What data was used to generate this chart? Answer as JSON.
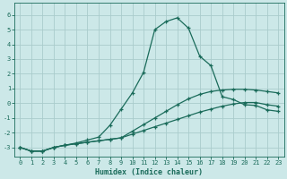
{
  "xlabel": "Humidex (Indice chaleur)",
  "ylabel": "",
  "bg_color": "#cce8e8",
  "grid_color": "#aacccc",
  "line_color": "#1a6b5a",
  "xlim": [
    -0.5,
    23.5
  ],
  "ylim": [
    -3.6,
    6.8
  ],
  "xticks": [
    0,
    1,
    2,
    3,
    4,
    5,
    6,
    7,
    8,
    9,
    10,
    11,
    12,
    13,
    14,
    15,
    16,
    17,
    18,
    19,
    20,
    21,
    22,
    23
  ],
  "yticks": [
    -3,
    -2,
    -1,
    0,
    1,
    2,
    3,
    4,
    5,
    6
  ],
  "line1_x": [
    0,
    1,
    2,
    3,
    4,
    5,
    6,
    7,
    8,
    9,
    10,
    11,
    12,
    13,
    14,
    15,
    16,
    17,
    18,
    19,
    20,
    21,
    22,
    23
  ],
  "line1_y": [
    -3.0,
    -3.25,
    -3.25,
    -3.0,
    -2.85,
    -2.75,
    -2.65,
    -2.55,
    -2.45,
    -2.35,
    -2.1,
    -1.85,
    -1.6,
    -1.35,
    -1.1,
    -0.85,
    -0.6,
    -0.4,
    -0.2,
    -0.05,
    0.05,
    0.05,
    -0.1,
    -0.2
  ],
  "line2_x": [
    0,
    1,
    2,
    3,
    4,
    5,
    6,
    7,
    8,
    9,
    10,
    11,
    12,
    13,
    14,
    15,
    16,
    17,
    18,
    19,
    20,
    21,
    22,
    23
  ],
  "line2_y": [
    -3.0,
    -3.25,
    -3.25,
    -3.0,
    -2.85,
    -2.75,
    -2.65,
    -2.55,
    -2.45,
    -2.35,
    -1.9,
    -1.45,
    -1.0,
    -0.55,
    -0.1,
    0.3,
    0.6,
    0.8,
    0.9,
    0.95,
    0.95,
    0.9,
    0.8,
    0.7
  ],
  "line3_x": [
    0,
    1,
    2,
    3,
    4,
    5,
    6,
    7,
    8,
    9,
    10,
    11,
    12,
    13,
    14,
    15,
    16,
    17,
    18,
    19,
    20,
    21,
    22,
    23
  ],
  "line3_y": [
    -3.0,
    -3.25,
    -3.25,
    -3.0,
    -2.85,
    -2.7,
    -2.5,
    -2.3,
    -1.5,
    -0.4,
    0.7,
    2.1,
    5.0,
    5.55,
    5.8,
    5.1,
    3.2,
    2.55,
    0.45,
    0.25,
    -0.1,
    -0.15,
    -0.45,
    -0.55
  ]
}
